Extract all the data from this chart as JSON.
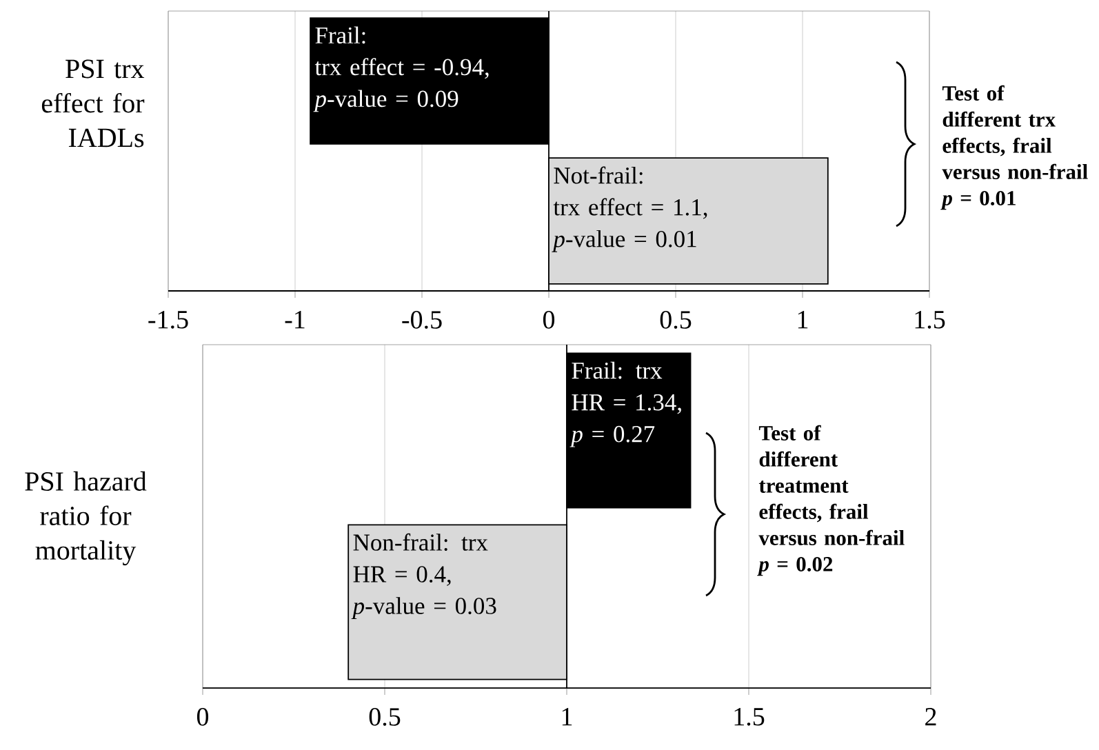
{
  "chart_data": [
    {
      "type": "bar",
      "orientation": "horizontal",
      "ylabel": "PSI trx\neffect for\nIADLs",
      "categories": [
        null,
        null
      ],
      "values": [
        -0.94,
        1.1
      ],
      "colors": [
        "#000000",
        "#d9d9d9"
      ],
      "value_labels": [
        "Frail:\ntrx effect = -0.94,\n*p*-value = 0.09",
        "Not-frail:\ntrx effect = 1.1,\n*p*-value = 0.01"
      ],
      "xlim": [
        -1.5,
        1.5
      ],
      "xticks": [
        -1.5,
        -1,
        -0.5,
        0,
        0.5,
        1,
        1.5
      ],
      "grid": "x",
      "ref_lines": [
        {
          "axis": "x",
          "value": 0
        }
      ],
      "annotations": [
        "Test of\ndifferent trx\neffects, frail\nversus non-frail\n*p* = 0.01"
      ]
    },
    {
      "type": "bar",
      "orientation": "horizontal",
      "ylabel": "PSI hazard\nratio for\nmortality",
      "categories": [
        null,
        null
      ],
      "base": [
        1,
        1
      ],
      "values": [
        0.34,
        -0.6
      ],
      "colors": [
        "#000000",
        "#d9d9d9"
      ],
      "value_labels": [
        "Frail: trx\nHR = 1.34,\n*p* = 0.27",
        "Non-frail: trx\nHR = 0.4,\n*p*-value = 0.03"
      ],
      "xlim": [
        0,
        2
      ],
      "xticks": [
        0,
        0.5,
        1,
        1.5,
        2
      ],
      "grid": "x",
      "ref_lines": [
        {
          "axis": "x",
          "value": 1
        }
      ],
      "annotations": [
        "Test of\ndifferent\ntreatment\neffects, frail\nversus non-frail\n*p* = 0.02"
      ]
    }
  ]
}
